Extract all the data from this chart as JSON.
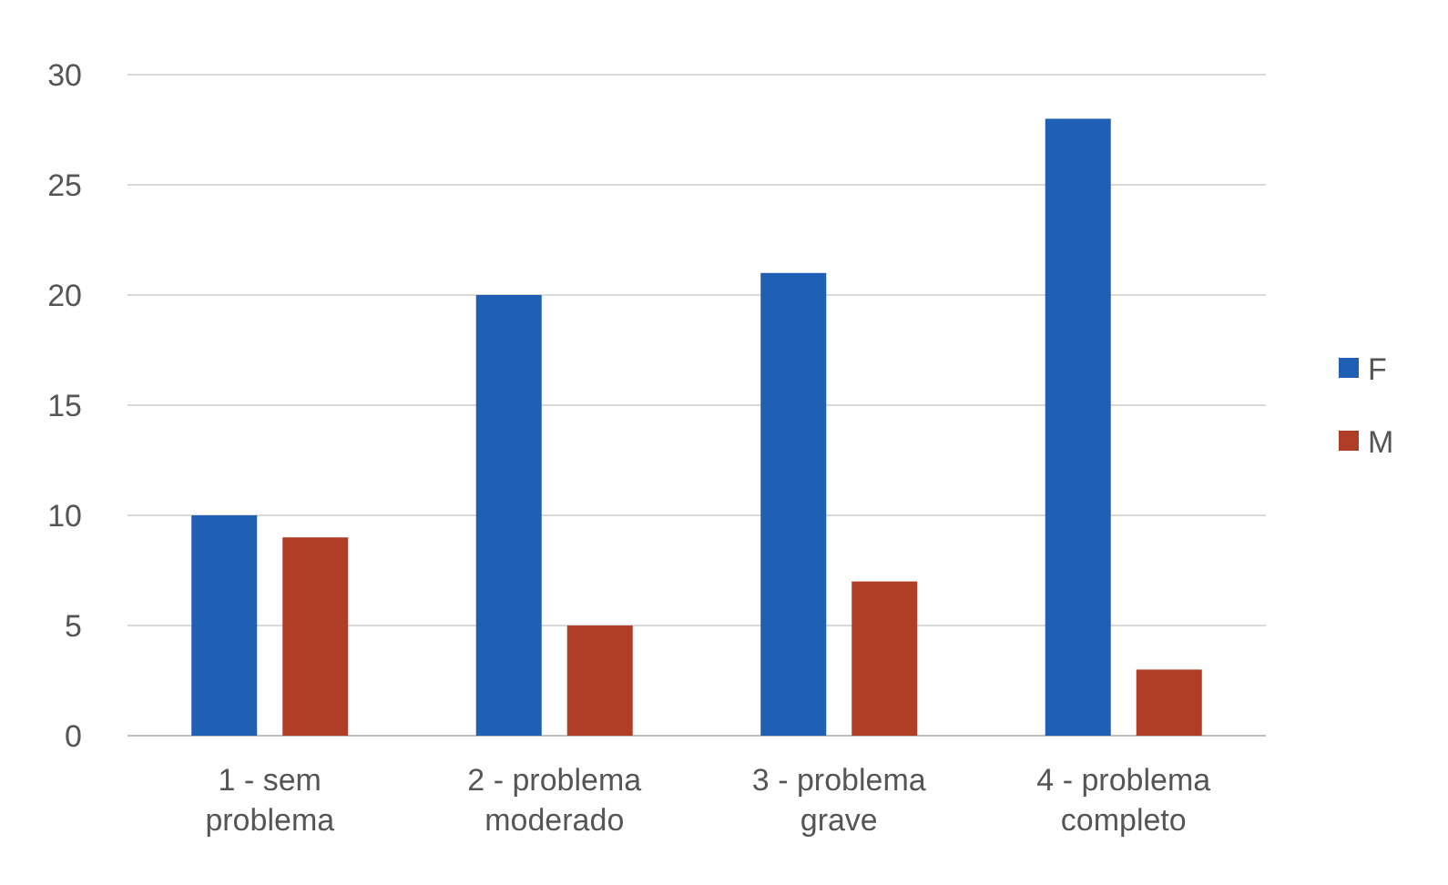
{
  "chart_data": {
    "type": "bar",
    "categories": [
      "1 - sem problema",
      "2 - problema moderado",
      "3 - problema grave",
      "4 - problema completo"
    ],
    "series": [
      {
        "name": "F",
        "color": "#1f5fb4",
        "values": [
          10,
          20,
          21,
          28
        ]
      },
      {
        "name": "M",
        "color": "#b03e26",
        "values": [
          9,
          5,
          7,
          3
        ]
      }
    ],
    "ylim": [
      0,
      30
    ],
    "yticks": [
      0,
      5,
      10,
      15,
      20,
      25,
      30
    ],
    "grid": "y",
    "legend": "right"
  }
}
